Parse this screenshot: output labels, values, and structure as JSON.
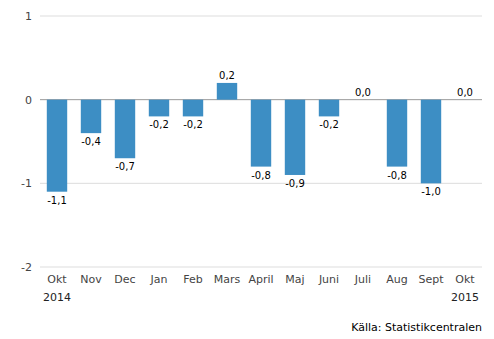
{
  "chart_data": {
    "type": "bar",
    "categories": [
      "Okt",
      "Nov",
      "Dec",
      "Jan",
      "Feb",
      "Mars",
      "April",
      "Maj",
      "Juni",
      "Juli",
      "Aug",
      "Sept",
      "Okt"
    ],
    "values": [
      -1.1,
      -0.4,
      -0.7,
      -0.2,
      -0.2,
      0.2,
      -0.8,
      -0.9,
      -0.2,
      0.0,
      -0.8,
      -1.0,
      0.0
    ],
    "value_labels": [
      "-1,1",
      "-0,4",
      "-0,7",
      "-0,2",
      "-0,2",
      "0,2",
      "-0,8",
      "-0,9",
      "-0,2",
      "0,0",
      "-0,8",
      "-1,0",
      "0,0"
    ],
    "data_labels": true,
    "color": "#3d8ec4",
    "ylim": [
      -2,
      1
    ],
    "yticks": [
      -2,
      -1,
      0,
      1
    ],
    "grid": true,
    "annotations": [
      {
        "text": "2014",
        "category": 0
      },
      {
        "text": "2015",
        "category": 12
      }
    ],
    "source": "Källa: Statistikcentralen"
  }
}
